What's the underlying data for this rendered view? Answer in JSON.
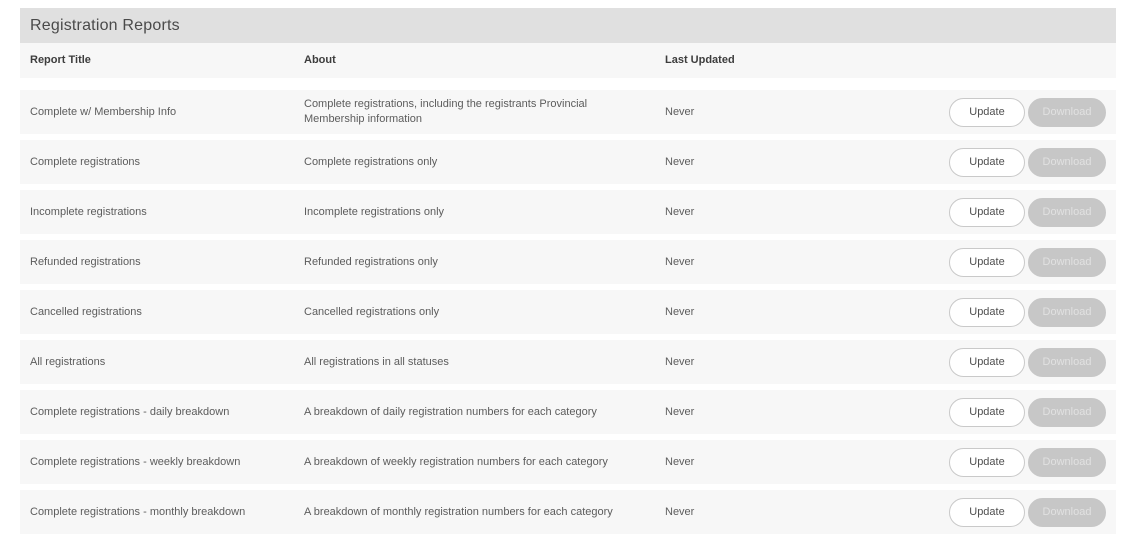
{
  "page": {
    "title": "Registration Reports"
  },
  "colors": {
    "title_bar_bg": "#e0e0e0",
    "row_bg": "#f7f7f7",
    "update_button_bg": "#ffffff",
    "update_button_border": "#c9c9c9",
    "download_button_bg": "#c7c7c7",
    "download_button_text": "#e1e1e1",
    "body_text": "#5c5c5c"
  },
  "table": {
    "columns": {
      "title": "Report Title",
      "about": "About",
      "last_updated": "Last Updated"
    },
    "actions": {
      "update_label": "Update",
      "download_label": "Download"
    },
    "rows": [
      {
        "title": "Complete w/ Membership Info",
        "about": "Complete registrations, including the registrants Provincial Membership information",
        "last_updated": "Never"
      },
      {
        "title": "Complete registrations",
        "about": "Complete registrations only",
        "last_updated": "Never"
      },
      {
        "title": "Incomplete registrations",
        "about": "Incomplete registrations only",
        "last_updated": "Never"
      },
      {
        "title": "Refunded registrations",
        "about": "Refunded registrations only",
        "last_updated": "Never"
      },
      {
        "title": "Cancelled registrations",
        "about": "Cancelled registrations only",
        "last_updated": "Never"
      },
      {
        "title": "All registrations",
        "about": "All registrations in all statuses",
        "last_updated": "Never"
      },
      {
        "title": "Complete registrations - daily breakdown",
        "about": "A breakdown of daily registration numbers for each category",
        "last_updated": "Never"
      },
      {
        "title": "Complete registrations - weekly breakdown",
        "about": "A breakdown of weekly registration numbers for each category",
        "last_updated": "Never"
      },
      {
        "title": "Complete registrations - monthly breakdown",
        "about": "A breakdown of monthly registration numbers for each category",
        "last_updated": "Never"
      }
    ]
  }
}
